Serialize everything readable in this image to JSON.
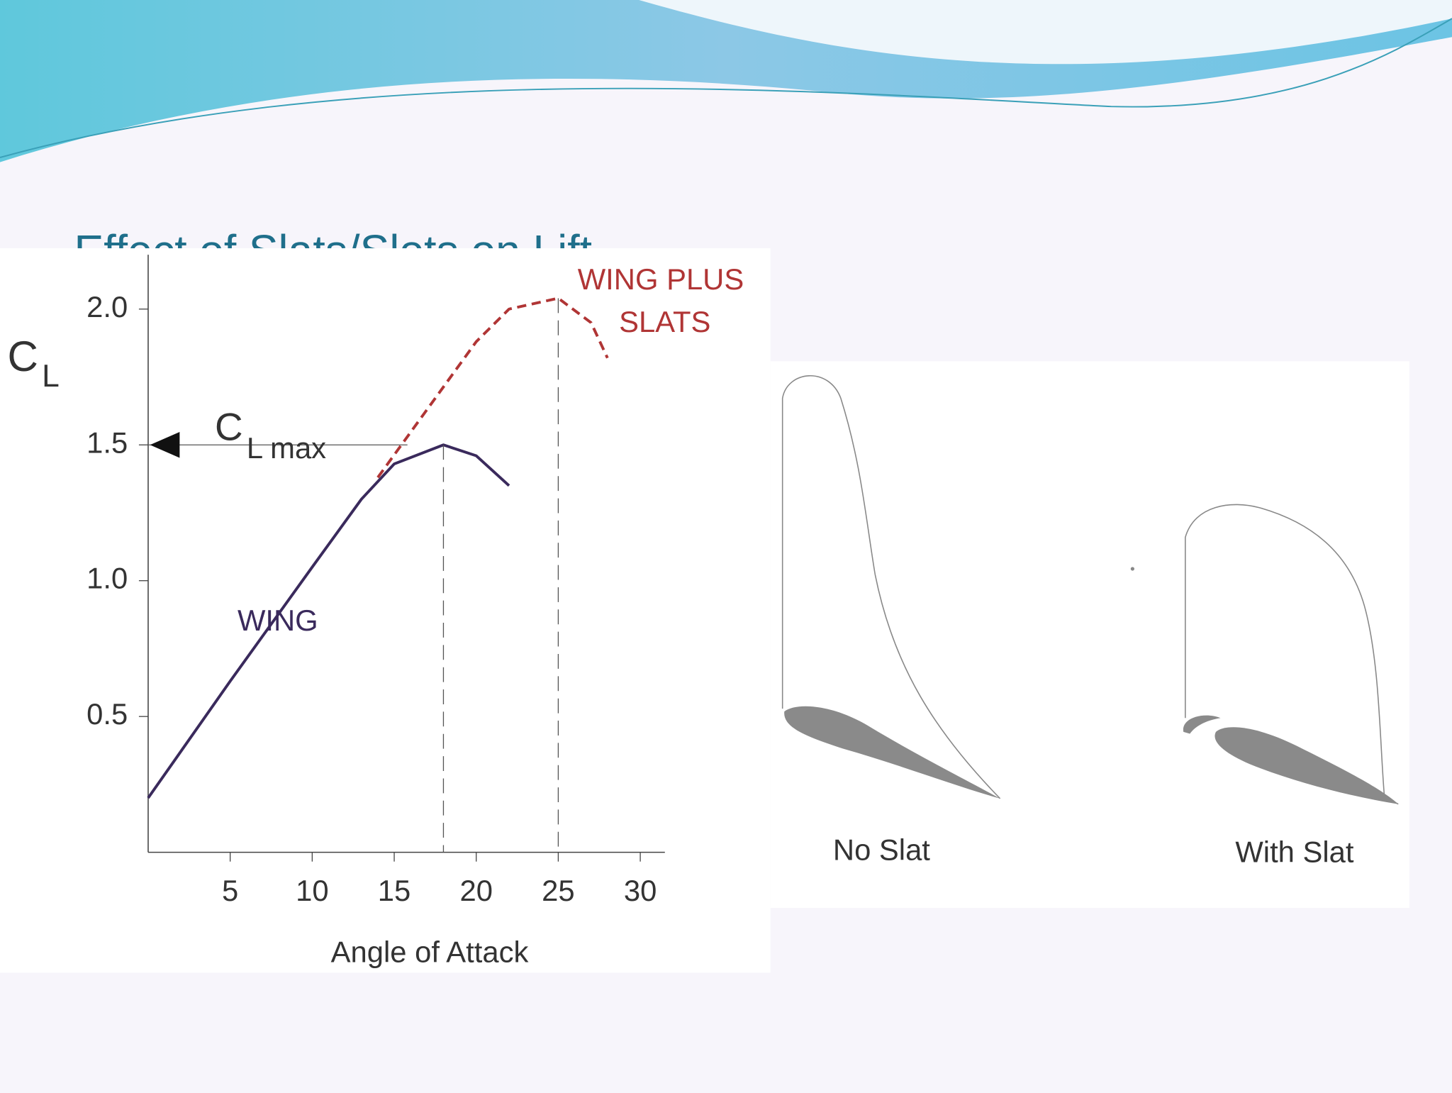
{
  "title": "Effect of Slats/Slots on Lift",
  "chart_data": {
    "type": "line",
    "y_label": "C",
    "y_label_subscript": "L",
    "annotation": "C",
    "annotation_subscript": "L max",
    "x_label": "Angle of Attack",
    "xlim": [
      0,
      31.5
    ],
    "ylim": [
      0,
      2.2
    ],
    "xticks": [
      5,
      10,
      15,
      20,
      25,
      30
    ],
    "yticks": [
      0.5,
      {
        "value": 1,
        "label": "1.0"
      },
      1.5,
      {
        "value": 2,
        "label": "2.0"
      }
    ],
    "series": [
      {
        "name": "WING",
        "color": "#3a2a5c",
        "dashed": false,
        "x": [
          0,
          5,
          10,
          13,
          15,
          18,
          20,
          22
        ],
        "values": [
          0.2,
          0.63,
          1.05,
          1.3,
          1.43,
          1.5,
          1.46,
          1.35
        ]
      },
      {
        "name": "WING PLUS SLATS",
        "color": "#b03535",
        "dashed": true,
        "x": [
          14,
          17,
          20,
          22,
          25,
          27,
          28
        ],
        "values": [
          1.38,
          1.63,
          1.88,
          2.0,
          2.04,
          1.95,
          1.82
        ]
      }
    ]
  },
  "diagram": {
    "labels": [
      "No Slat",
      "With Slat"
    ]
  }
}
